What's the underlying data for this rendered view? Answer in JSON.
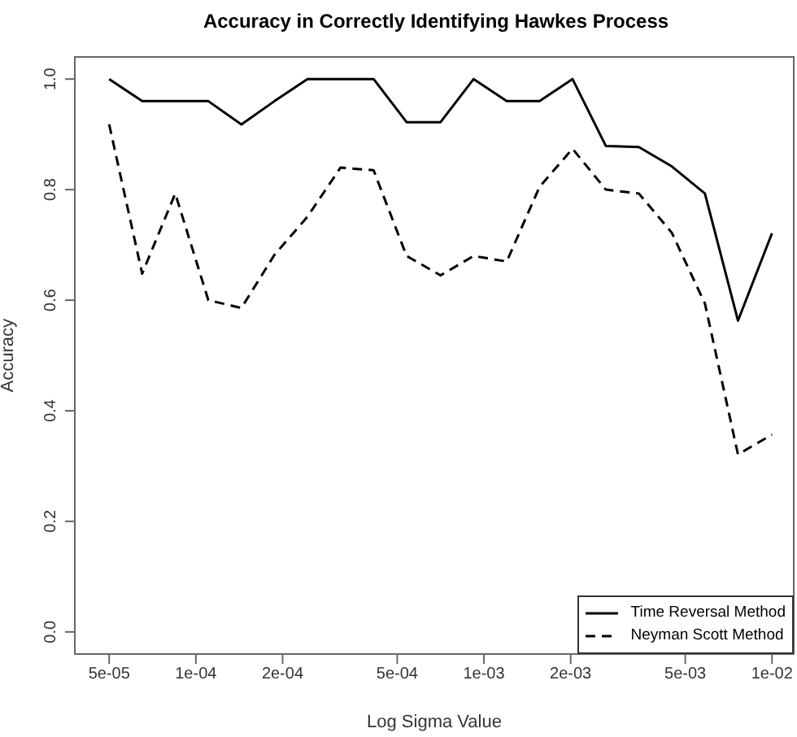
{
  "chart_data": {
    "type": "line",
    "title": "Accuracy in Correctly Identifying Hawkes Process",
    "xlabel": "Log Sigma Value",
    "ylabel": "Accuracy",
    "log": "x",
    "x": [
      5e-05,
      6.51e-05,
      8.48e-05,
      0.0001105,
      0.0001439,
      0.0001874,
      0.000244,
      0.000318,
      0.000414,
      0.000539,
      0.000707,
      0.000921,
      0.0012,
      0.00156,
      0.00203,
      0.00265,
      0.00345,
      0.00449,
      0.00585,
      0.00762,
      0.01
    ],
    "xlim": [
      3.8e-05,
      0.0119
    ],
    "xticks": [
      {
        "value": 5e-05,
        "label": "5e-05"
      },
      {
        "value": 0.0001,
        "label": "1e-04"
      },
      {
        "value": 0.0002,
        "label": "2e-04"
      },
      {
        "value": 0.0005,
        "label": "5e-04"
      },
      {
        "value": 0.001,
        "label": "1e-03"
      },
      {
        "value": 0.002,
        "label": "2e-03"
      },
      {
        "value": 0.005,
        "label": "5e-03"
      },
      {
        "value": 0.01,
        "label": "1e-02"
      }
    ],
    "ylim": [
      -0.04,
      1.04
    ],
    "yticks": [
      {
        "value": 0,
        "label": "0.0"
      },
      {
        "value": 0.2,
        "label": "0.2"
      },
      {
        "value": 0.4,
        "label": "0.4"
      },
      {
        "value": 0.6,
        "label": "0.6"
      },
      {
        "value": 0.8,
        "label": "0.8"
      },
      {
        "value": 1,
        "label": "1.0"
      }
    ],
    "legend": "bottom right",
    "grid": false,
    "series": [
      {
        "name": "Time Reversal Method",
        "color": "#000000",
        "line_style": "solid",
        "values": [
          1.0,
          0.96,
          0.96,
          0.96,
          0.918,
          0.96,
          1.0,
          1.0,
          1.0,
          0.922,
          0.922,
          1.0,
          0.96,
          0.96,
          1.0,
          0.879,
          0.877,
          0.842,
          0.793,
          0.563,
          0.721
        ]
      },
      {
        "name": "Neyman Scott Method",
        "color": "#000000",
        "line_style": "dashed",
        "values": [
          0.918,
          0.648,
          0.793,
          0.6,
          0.586,
          0.682,
          0.751,
          0.84,
          0.835,
          0.68,
          0.645,
          0.68,
          0.67,
          0.805,
          0.874,
          0.8,
          0.793,
          0.722,
          0.594,
          0.321,
          0.357
        ]
      }
    ]
  }
}
